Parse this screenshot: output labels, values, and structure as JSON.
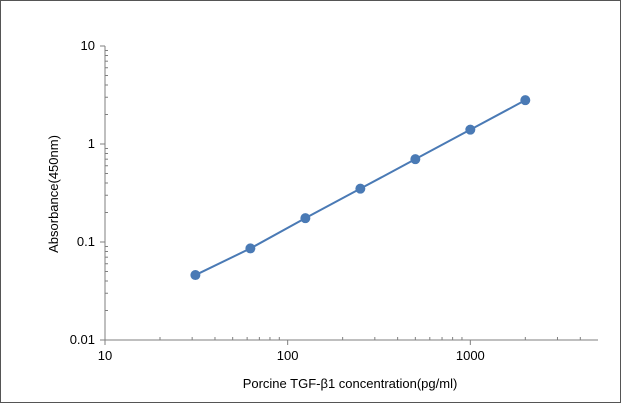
{
  "chart_data": {
    "type": "line",
    "title": "",
    "xlabel": "Porcine TGF-β1 concentration(pg/ml)",
    "ylabel": "Absorbance(450nm)",
    "x_scale": "log",
    "y_scale": "log",
    "xlim": [
      10,
      5000
    ],
    "ylim": [
      0.01,
      10
    ],
    "x_ticks": [
      "10",
      "100",
      "1000"
    ],
    "y_ticks": [
      "0.01",
      "0.1",
      "1",
      "10"
    ],
    "grid": false,
    "legend": "none",
    "series": [
      {
        "color": "#4a7ab5",
        "marker": "circle",
        "x": [
          31.25,
          62.5,
          125,
          250,
          500,
          1000,
          2000
        ],
        "y": [
          0.046,
          0.086,
          0.175,
          0.35,
          0.7,
          1.4,
          2.8
        ]
      }
    ]
  }
}
